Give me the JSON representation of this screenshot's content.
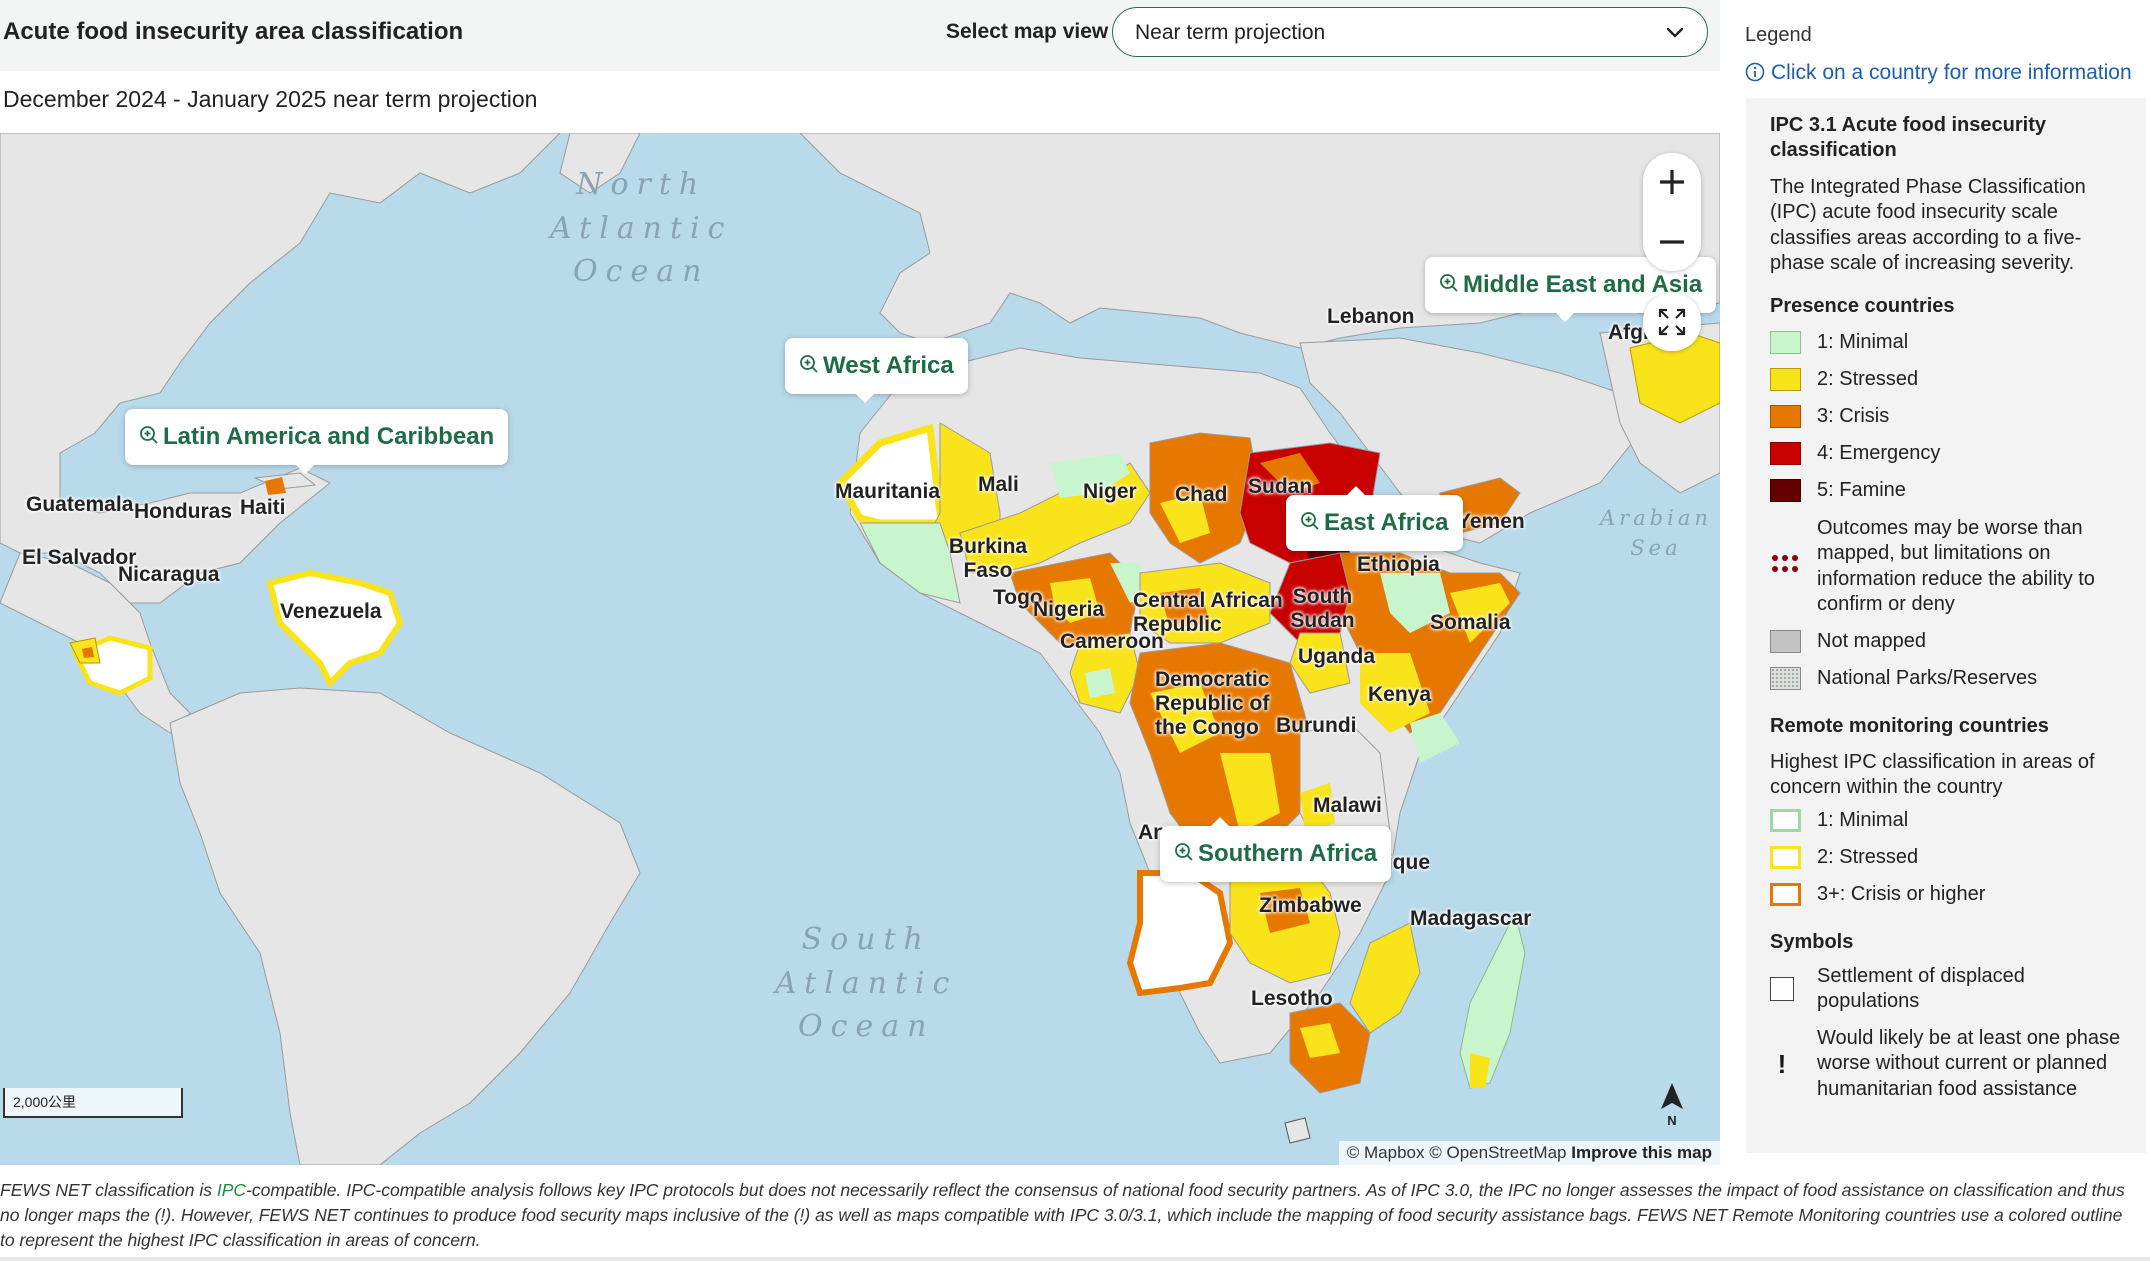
{
  "header": {
    "title": "Acute food insecurity area classification",
    "select_label": "Select map view",
    "select_value": "Near term projection",
    "subtitle": "December 2024 - January 2025 near term projection"
  },
  "map": {
    "oceans": [
      "North Atlantic Ocean",
      "South Atlantic Ocean",
      "Arabian Sea"
    ],
    "ocean_lines": {
      "north_atlantic": [
        "North",
        "Atlantic",
        "Ocean"
      ],
      "south_atlantic": [
        "South",
        "Atlantic",
        "Ocean"
      ],
      "arabian": [
        "Arabian",
        "Sea"
      ]
    },
    "places": {
      "guatemala": "Guatemala",
      "honduras": "Honduras",
      "haiti": "Haiti",
      "el_salvador": "El Salvador",
      "nicaragua": "Nicaragua",
      "venezuela": "Venezuela",
      "mauritania": "Mauritania",
      "mali": "Mali",
      "niger": "Niger",
      "chad": "Chad",
      "sudan": "Sudan",
      "yemen": "Yemen",
      "burkina": "Burkina Faso",
      "togo": "Togo",
      "nigeria": "Nigeria",
      "car": "Central African Republic",
      "south_sudan": "South Sudan",
      "ethiopia": "Ethiopia",
      "somalia": "Somalia",
      "cameroon": "Cameroon",
      "uganda": "Uganda",
      "kenya": "Kenya",
      "drc": "Democratic Republic of the Congo",
      "burundi": "Burundi",
      "malawi": "Malawi",
      "mozambique": "Mozambique",
      "zimbabwe": "Zimbabwe",
      "madagascar": "Madagascar",
      "lesotho": "Lesotho",
      "lebanon": "Lebanon",
      "afghanistan": "Afghanistan",
      "angola": "Angola"
    },
    "region_buttons": {
      "lac": "Latin America and Caribbean",
      "west_africa": "West Africa",
      "east_africa": "East Africa",
      "middle_east_asia": "Middle East and Asia",
      "southern_africa": "Southern Africa"
    },
    "scale": "2,000公里",
    "north": "N",
    "attribution": {
      "mapbox": "© Mapbox",
      "osm": "© OpenStreetMap",
      "improve": "Improve this map"
    }
  },
  "legend": {
    "heading": "Legend",
    "info_link": "Click on a country for more information",
    "ipc_title": "IPC 3.1 Acute food insecurity classification",
    "ipc_desc": "The Integrated Phase Classification (IPC) acute food insecurity scale classifies areas according to a five-phase scale of increasing severity.",
    "presence_title": "Presence countries",
    "presence_items": [
      {
        "label": "1: Minimal",
        "color": "#c9f5cd"
      },
      {
        "label": "2: Stressed",
        "color": "#f9e31b"
      },
      {
        "label": "3: Crisis",
        "color": "#e67800"
      },
      {
        "label": "4: Emergency",
        "color": "#c80000"
      },
      {
        "label": "5: Famine",
        "color": "#640000"
      }
    ],
    "outcomes_worse": "Outcomes may be worse than mapped, but limitations on information reduce the ability to confirm or deny",
    "not_mapped": "Not mapped",
    "parks": "National Parks/Reserves",
    "remote_title": "Remote monitoring countries",
    "remote_desc": "Highest IPC classification in areas of concern within the country",
    "remote_items": [
      {
        "label": "1: Minimal",
        "color": "#c9f5cd"
      },
      {
        "label": "2: Stressed",
        "color": "#f9e31b"
      },
      {
        "label": "3+: Crisis or higher",
        "color": "#e67800"
      }
    ],
    "symbols_title": "Symbols",
    "settlement": "Settlement of displaced populations",
    "exclaim": "!",
    "assistance": "Would likely be at least one phase worse without current or planned humanitarian food assistance"
  },
  "footnote": {
    "part1": "FEWS NET classification is ",
    "link": "IPC",
    "part2": "-compatible. IPC-compatible analysis follows key IPC protocols but does not necessarily reflect the consensus of national food security partners. As of IPC 3.0, the IPC no longer assesses the impact of food assistance on classification and thus no longer maps the (!). However, FEWS NET continues to produce food security maps inclusive of the (!) as well as maps compatible with IPC 3.0/3.1, which include the mapping of food security assistance bags. FEWS NET Remote Monitoring countries use a colored outline to represent the highest IPC classification in areas of concern."
  },
  "colors": {
    "accent_green": "#1d6c46",
    "link_blue": "#1c5fae",
    "ocean": "#b9daeb",
    "land": "#e6e6e6",
    "minimal": "#c9f5cd",
    "stressed": "#f9e31b",
    "crisis": "#e67800",
    "emergency": "#c80000",
    "famine": "#640000",
    "not_mapped": "#c3c3c3"
  },
  "icons": {
    "chevron": "chevron-down-icon",
    "zoom_in": "plus-icon",
    "zoom_out": "minus-icon",
    "fullscreen": "expand-icon",
    "info": "info-icon",
    "region_zoom": "zoom-in-icon",
    "north": "north-arrow-icon"
  }
}
